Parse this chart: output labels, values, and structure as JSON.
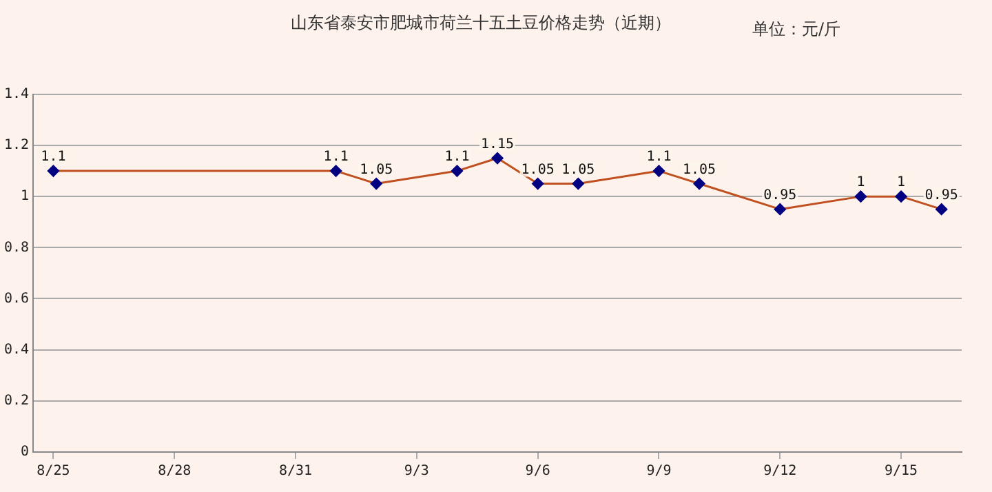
{
  "chart_data": {
    "type": "line",
    "title": "山东省泰安市肥城市荷兰十五土豆价格走势（近期）",
    "annotations": [
      "单位：元/斤"
    ],
    "x": [
      "--08-25",
      "--09-01",
      "--09-02",
      "--09-04",
      "--09-05",
      "--09-06",
      "--09-07",
      "--09-09",
      "--09-10",
      "--09-12",
      "--09-14",
      "--09-15",
      "--09-16"
    ],
    "series": [
      {
        "color": "#c0501f",
        "values": [
          1.1,
          1.1,
          1.05,
          1.1,
          1.15,
          1.05,
          1.05,
          1.1,
          1.05,
          0.95,
          1,
          1,
          0.95
        ]
      }
    ],
    "xlim": [
      "--08-24T12:00",
      "--09-16T12:00"
    ],
    "xticks": [
      {
        "value": "--08-25",
        "label": "8/25"
      },
      {
        "value": "--08-28",
        "label": "8/28"
      },
      {
        "value": "--08-31",
        "label": "8/31"
      },
      {
        "value": "--09-03",
        "label": "9/3"
      },
      {
        "value": "--09-06",
        "label": "9/6"
      },
      {
        "value": "--09-09",
        "label": "9/9"
      },
      {
        "value": "--09-12",
        "label": "9/12"
      },
      {
        "value": "--09-15",
        "label": "9/15"
      }
    ],
    "ylim": [
      0,
      1.4
    ],
    "yticks": [
      0,
      0.2,
      0.4,
      0.6,
      0.8,
      1,
      1.2,
      1.4
    ],
    "grid": "y",
    "legend": false,
    "marker": "diamond",
    "line_style": "solid",
    "data_labels": true
  }
}
